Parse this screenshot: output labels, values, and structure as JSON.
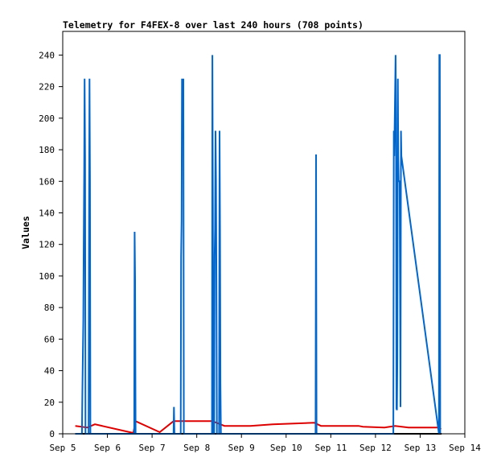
{
  "chart_data": {
    "type": "line",
    "title": "Telemetry for F4FEX-8 over last 240 hours (708 points)",
    "xlabel": "",
    "ylabel": "Values",
    "x_unit": "days (September)",
    "xlim": [
      5.0,
      14.0
    ],
    "ylim": [
      0,
      255
    ],
    "x_ticks": [
      {
        "value": 5,
        "label": "Sep 5"
      },
      {
        "value": 6,
        "label": "Sep 6"
      },
      {
        "value": 7,
        "label": "Sep 7"
      },
      {
        "value": 8,
        "label": "Sep 8"
      },
      {
        "value": 9,
        "label": "Sep 9"
      },
      {
        "value": 10,
        "label": "Sep 10"
      },
      {
        "value": 11,
        "label": "Sep 11"
      },
      {
        "value": 12,
        "label": "Sep 12"
      },
      {
        "value": 13,
        "label": "Sep 13"
      },
      {
        "value": 14,
        "label": "Sep 14"
      }
    ],
    "y_ticks": [
      0,
      20,
      40,
      60,
      80,
      100,
      120,
      140,
      160,
      180,
      200,
      220,
      240
    ],
    "grid": false,
    "legend": "none",
    "colors": {
      "blue": "#0066cc",
      "red": "#dd0000",
      "black": "#000000",
      "frame": "#000000"
    },
    "series": [
      {
        "color": "#000000",
        "points": [
          [
            5.28,
            0
          ],
          [
            13.48,
            0
          ]
        ]
      },
      {
        "color": "#dd0000",
        "points": [
          [
            5.28,
            5
          ],
          [
            5.55,
            4
          ],
          [
            5.72,
            6
          ],
          [
            6.58,
            0.5
          ],
          [
            6.63,
            8
          ],
          [
            7.17,
            1
          ],
          [
            7.48,
            8
          ],
          [
            8.35,
            8
          ],
          [
            8.62,
            5
          ],
          [
            9.2,
            5
          ],
          [
            9.7,
            6
          ],
          [
            10.63,
            7
          ],
          [
            10.78,
            5
          ],
          [
            11.62,
            5
          ],
          [
            11.72,
            4.5
          ],
          [
            12.2,
            4
          ],
          [
            12.44,
            5
          ],
          [
            12.74,
            4
          ],
          [
            13.38,
            4
          ],
          [
            13.47,
            3
          ]
        ]
      },
      {
        "color": "#0066cc",
        "points": [
          [
            5.28,
            0
          ],
          [
            5.43,
            0
          ],
          [
            5.44,
            25
          ],
          [
            5.46,
            72
          ],
          [
            5.47,
            120
          ],
          [
            5.48,
            168
          ],
          [
            5.49,
            225
          ],
          [
            5.5,
            175
          ],
          [
            5.51,
            0
          ],
          [
            5.58,
            0
          ],
          [
            5.59,
            145
          ],
          [
            5.6,
            225
          ],
          [
            5.61,
            160
          ],
          [
            5.62,
            0
          ],
          [
            6.6,
            0
          ],
          [
            6.61,
            128
          ],
          [
            6.62,
            97
          ],
          [
            6.63,
            0
          ],
          [
            7.48,
            0
          ],
          [
            7.49,
            17
          ],
          [
            7.5,
            0
          ],
          [
            7.64,
            0
          ],
          [
            7.65,
            112
          ],
          [
            7.66,
            135
          ],
          [
            7.67,
            225
          ],
          [
            7.69,
            208
          ],
          [
            7.7,
            225
          ],
          [
            7.71,
            0
          ],
          [
            8.34,
            0
          ],
          [
            8.35,
            240
          ],
          [
            8.36,
            145
          ],
          [
            8.37,
            0
          ],
          [
            8.39,
            0
          ],
          [
            8.4,
            113
          ],
          [
            8.41,
            130
          ],
          [
            8.42,
            192
          ],
          [
            8.43,
            160
          ],
          [
            8.44,
            97
          ],
          [
            8.45,
            0
          ],
          [
            8.5,
            0
          ],
          [
            8.51,
            192
          ],
          [
            8.52,
            128
          ],
          [
            8.53,
            32
          ],
          [
            8.54,
            0
          ],
          [
            10.66,
            0
          ],
          [
            10.67,
            177
          ],
          [
            10.68,
            0
          ],
          [
            12.4,
            0
          ],
          [
            12.41,
            192
          ],
          [
            12.42,
            176
          ],
          [
            12.45,
            240
          ],
          [
            12.46,
            200
          ],
          [
            12.47,
            16
          ],
          [
            12.48,
            15
          ],
          [
            12.49,
            48
          ],
          [
            12.5,
            225
          ],
          [
            12.51,
            176
          ],
          [
            12.52,
            160
          ],
          [
            12.54,
            160
          ],
          [
            12.56,
            17
          ],
          [
            12.57,
            192
          ],
          [
            12.58,
            176
          ],
          [
            13.42,
            0
          ],
          [
            13.43,
            240
          ],
          [
            13.44,
            240
          ],
          [
            13.45,
            0
          ]
        ]
      }
    ]
  }
}
